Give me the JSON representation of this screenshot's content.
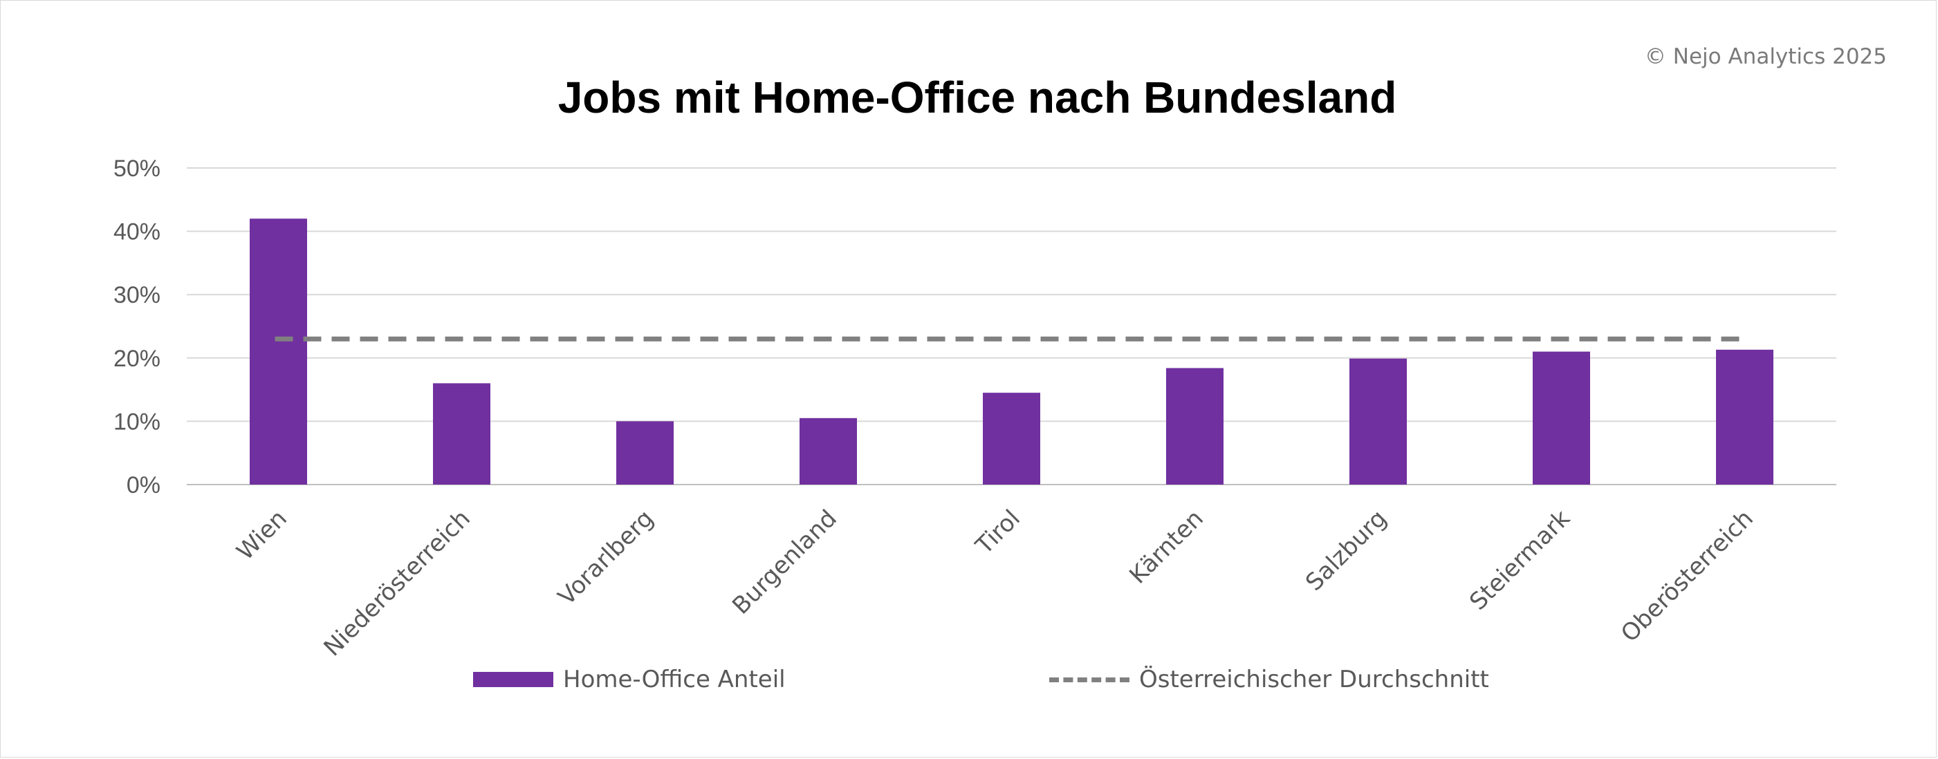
{
  "copyright": "© Nejo Analytics 2025",
  "chart_data": {
    "type": "bar",
    "title": "Jobs mit Home-Office nach Bundesland",
    "categories": [
      "Wien",
      "Niederösterreich",
      "Vorarlberg",
      "Burgenland",
      "Tirol",
      "Kärnten",
      "Salzburg",
      "Steiermark",
      "Oberösterreich"
    ],
    "series": [
      {
        "name": "Home-Office Anteil",
        "type": "bar",
        "color": "#7030a0",
        "values": [
          0.42,
          0.16,
          0.1,
          0.105,
          0.145,
          0.184,
          0.199,
          0.21,
          0.213
        ]
      },
      {
        "name": "Österreichischer Durchschnitt",
        "type": "line",
        "style": "dashed",
        "color": "#808080",
        "values": [
          0.23,
          0.23,
          0.23,
          0.23,
          0.23,
          0.23,
          0.23,
          0.23,
          0.23
        ]
      }
    ],
    "y_ticks": [
      "0%",
      "10%",
      "20%",
      "30%",
      "40%",
      "50%"
    ],
    "ylim": [
      0,
      0.5
    ],
    "grid": true,
    "legend_position": "bottom",
    "xlabel": "",
    "ylabel": ""
  }
}
